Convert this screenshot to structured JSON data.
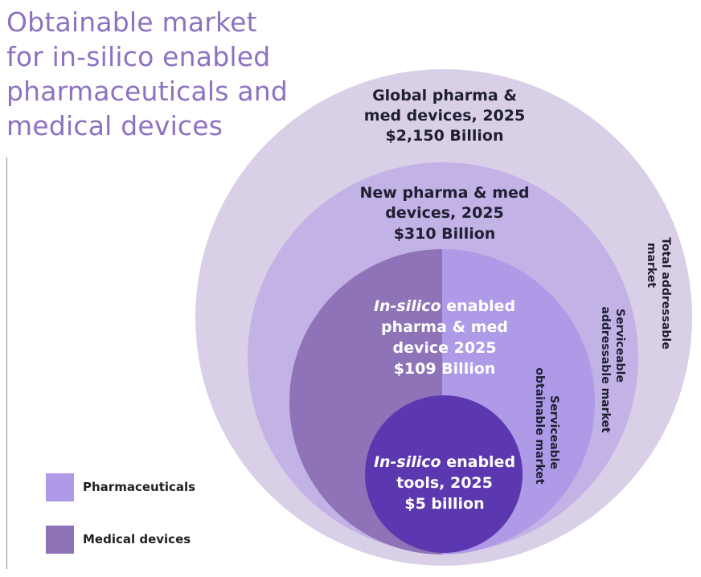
{
  "title_lines": [
    "Obtainable market",
    "for in-silico enabled",
    "pharmaceuticals and",
    "medical devices"
  ],
  "circles": {
    "total": {
      "lines": [
        "Global pharma &",
        "med devices, 2025",
        "$2,150 Billion"
      ],
      "side_label": [
        "Total addressable",
        "market"
      ],
      "color": "#D9D0E8"
    },
    "serviceable": {
      "lines": [
        "New pharma & med",
        "devices, 2025",
        "$310 Billion"
      ],
      "side_label": [
        "Serviceable",
        "addressable market"
      ],
      "color": "#C3B2E6"
    },
    "obtainable": {
      "line1_italic": "In-silico",
      "line1_rest": " enabled",
      "lines": [
        "pharma & med",
        "device 2025",
        "$109 Billion"
      ],
      "side_label": [
        "Serviceable",
        "obtainable market"
      ],
      "color_left": "#8E73B8",
      "color_right": "#AE9AE6"
    },
    "tools": {
      "line1_italic": "In-silico",
      "line1_rest": " enabled",
      "lines": [
        "tools, 2025",
        "$5 billion"
      ],
      "color": "#5B38B0"
    }
  },
  "legend": [
    {
      "label": "Pharmaceuticals",
      "color": "#AE9AE6"
    },
    {
      "label": "Medical devices",
      "color": "#8E73B8"
    }
  ]
}
